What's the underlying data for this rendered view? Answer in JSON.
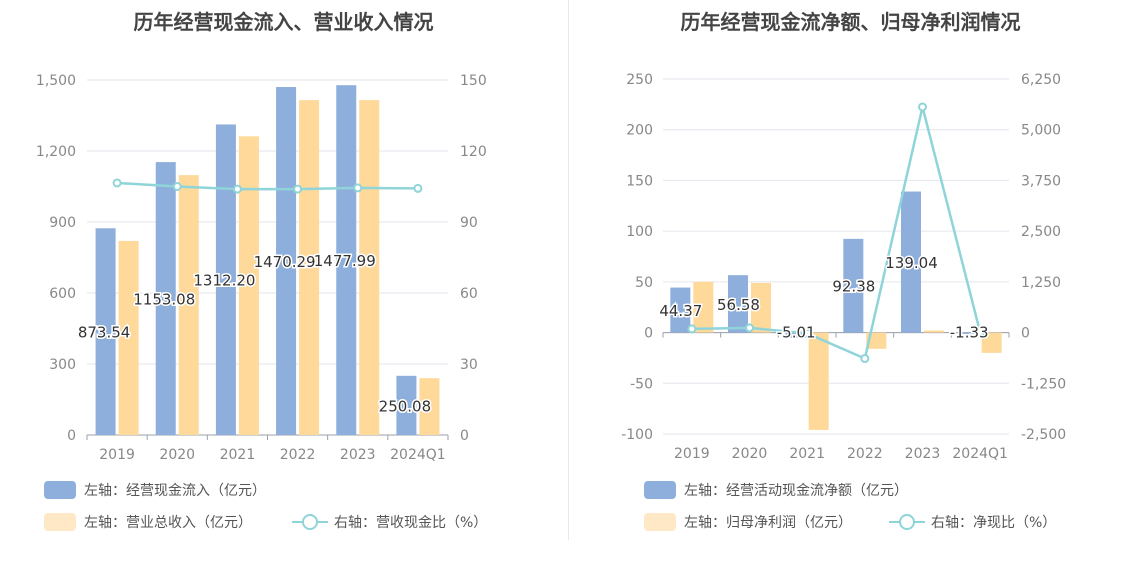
{
  "colors": {
    "bar_primary": "#8eaedc",
    "bar_secondary": "#fed99a",
    "line": "#8fd4d9",
    "grid": "#e3e6ee",
    "text": "#666666"
  },
  "chart_data": [
    {
      "type": "bar",
      "title": "历年经营现金流入、营业收入情况",
      "categories": [
        "2019",
        "2020",
        "2021",
        "2022",
        "2023",
        "2024Q1"
      ],
      "y_left": {
        "ylim": [
          0,
          1500
        ],
        "ticks": [
          0,
          300,
          600,
          900,
          1200,
          1500
        ],
        "tick_labels": [
          "0",
          "300",
          "600",
          "900",
          "1,200",
          "1,500"
        ]
      },
      "y_right": {
        "ylim": [
          0,
          150
        ],
        "ticks": [
          0,
          30,
          60,
          90,
          120,
          150
        ],
        "tick_labels": [
          "0",
          "30",
          "60",
          "90",
          "120",
          "150"
        ]
      },
      "series": [
        {
          "name": "左轴：经营现金流入（亿元）",
          "type": "bar",
          "axis": "left",
          "values": [
            873.54,
            1153.08,
            1312.2,
            1470.29,
            1477.99,
            250.08
          ],
          "labels": [
            "873.54",
            "1153.08",
            "1312.20",
            "1470.29",
            "1477.99",
            "250.08"
          ]
        },
        {
          "name": "左轴：营业总收入（亿元）",
          "type": "bar",
          "axis": "left",
          "values": [
            820,
            1098,
            1262,
            1415,
            1415,
            240
          ]
        },
        {
          "name": "右轴：营收现金比（%）",
          "type": "line",
          "axis": "right",
          "values": [
            106.5,
            105.0,
            103.9,
            103.9,
            104.4,
            104.2
          ]
        }
      ]
    },
    {
      "type": "bar",
      "title": "历年经营现金流净额、归母净利润情况",
      "categories": [
        "2019",
        "2020",
        "2021",
        "2022",
        "2023",
        "2024Q1"
      ],
      "y_left": {
        "ylim": [
          -100,
          250
        ],
        "ticks": [
          -100,
          -50,
          0,
          50,
          100,
          150,
          200,
          250
        ],
        "tick_labels": [
          "-100",
          "-50",
          "0",
          "50",
          "100",
          "150",
          "200",
          "250"
        ]
      },
      "y_right": {
        "ylim": [
          -2500,
          6250
        ],
        "ticks": [
          -2500,
          -1250,
          0,
          1250,
          2500,
          3750,
          5000,
          6250
        ],
        "tick_labels": [
          "-2,500",
          "-1,250",
          "0",
          "1,250",
          "2,500",
          "3,750",
          "5,000",
          "6,250"
        ]
      },
      "series": [
        {
          "name": "左轴：经营活动现金流净额（亿元）",
          "type": "bar",
          "axis": "left",
          "values": [
            44.37,
            56.58,
            -5.01,
            92.38,
            139.04,
            -1.33
          ],
          "labels": [
            "44.37",
            "56.58",
            "-5.01",
            "92.38",
            "139.04",
            "-1.33"
          ]
        },
        {
          "name": "左轴：归母净利润（亿元）",
          "type": "bar",
          "axis": "left",
          "values": [
            50,
            49,
            -96,
            -16,
            2,
            -20
          ]
        },
        {
          "name": "右轴：净现比（%）",
          "type": "line",
          "axis": "right",
          "values": [
            90,
            115,
            -20,
            -640,
            5560,
            7
          ]
        }
      ]
    }
  ]
}
